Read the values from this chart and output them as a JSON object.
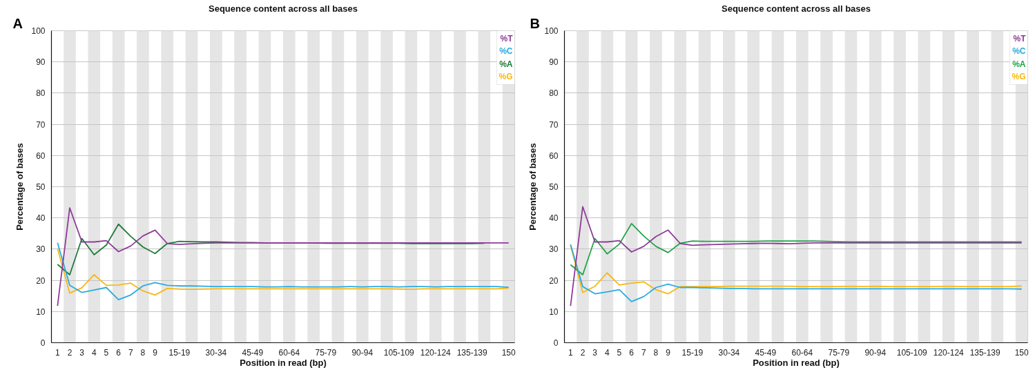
{
  "chart_data": [
    {
      "type": "line",
      "title": "Sequence content across all bases",
      "xlabel": "Position in read (bp)",
      "ylabel": "Percentage of bases",
      "annotations": [
        "A"
      ],
      "categories": [
        "1",
        "2",
        "3",
        "4",
        "5",
        "6",
        "7",
        "8",
        "9",
        null,
        "15-19",
        null,
        null,
        "30-34",
        null,
        null,
        "45-49",
        null,
        null,
        "60-64",
        null,
        null,
        "75-79",
        null,
        null,
        "90-94",
        null,
        null,
        "105-109",
        null,
        null,
        "120-124",
        null,
        null,
        "135-139",
        null,
        null,
        "150"
      ],
      "series": [
        {
          "name": "%T",
          "color": "#8e3a97",
          "values": [
            11.8,
            43.2,
            32.3,
            32.3,
            32.7,
            29.2,
            31.0,
            34.2,
            36.1,
            31.8,
            31.5,
            31.7,
            31.9,
            32.0,
            32.0,
            32.0,
            32.0,
            32.0,
            32.0,
            32.0,
            32.0,
            32.0,
            32.0,
            32.0,
            32.0,
            32.0,
            32.0,
            32.0,
            32.0,
            32.0,
            32.0,
            32.0,
            32.0,
            32.0,
            32.0,
            32.0,
            32.0,
            32.0
          ]
        },
        {
          "name": "%C",
          "color": "#29abe2",
          "values": [
            32.0,
            18.4,
            16.1,
            16.9,
            17.7,
            13.8,
            15.3,
            18.2,
            19.3,
            18.4,
            18.2,
            18.2,
            18.1,
            18.0,
            18.0,
            18.0,
            18.0,
            17.9,
            17.9,
            18.0,
            17.9,
            17.9,
            17.9,
            17.9,
            18.0,
            17.9,
            18.0,
            18.0,
            17.9,
            18.0,
            18.0,
            17.9,
            18.0,
            18.0,
            18.0,
            18.0,
            18.0,
            17.8
          ]
        },
        {
          "name": "%A",
          "color": "#1e7b3a",
          "values": [
            25.1,
            21.8,
            33.4,
            28.2,
            31.3,
            38.0,
            34.1,
            30.7,
            28.6,
            31.8,
            32.5,
            32.4,
            32.3,
            32.3,
            32.2,
            32.1,
            32.1,
            32.0,
            32.0,
            32.0,
            32.0,
            32.0,
            31.9,
            31.9,
            31.9,
            31.9,
            31.9,
            31.9,
            31.9,
            31.8,
            31.8,
            31.8,
            31.8,
            31.8,
            31.8,
            31.9,
            null,
            null
          ]
        },
        {
          "name": "%G",
          "color": "#f7b813",
          "values": [
            30.2,
            15.9,
            17.6,
            21.8,
            18.4,
            18.5,
            19.1,
            16.6,
            15.3,
            17.4,
            17.2,
            17.1,
            17.2,
            17.3,
            17.3,
            17.3,
            17.3,
            17.3,
            17.3,
            17.3,
            17.3,
            17.3,
            17.3,
            17.3,
            17.3,
            17.3,
            17.3,
            17.3,
            17.2,
            17.1,
            17.3,
            17.3,
            17.3,
            17.3,
            17.3,
            17.3,
            17.3,
            17.5
          ]
        }
      ],
      "ylim": [
        0,
        100
      ],
      "yticks": [
        0,
        10,
        20,
        30,
        40,
        50,
        60,
        70,
        80,
        90,
        100
      ],
      "grid": true,
      "legend": "top right"
    },
    {
      "type": "line",
      "title": "Sequence content across all bases",
      "xlabel": "Position in read (bp)",
      "ylabel": "Percentage of bases",
      "annotations": [
        "B"
      ],
      "categories": [
        "1",
        "2",
        "3",
        "4",
        "5",
        "6",
        "7",
        "8",
        "9",
        null,
        "15-19",
        null,
        null,
        "30-34",
        null,
        null,
        "45-49",
        null,
        null,
        "60-64",
        null,
        null,
        "75-79",
        null,
        null,
        "90-94",
        null,
        null,
        "105-109",
        null,
        null,
        "120-124",
        null,
        null,
        "135-139",
        null,
        null,
        "150"
      ],
      "series": [
        {
          "name": "%T",
          "color": "#8e3a97",
          "values": [
            11.8,
            43.6,
            32.3,
            32.3,
            32.7,
            29.1,
            30.9,
            34.0,
            36.1,
            31.8,
            31.2,
            31.4,
            31.5,
            31.6,
            31.7,
            31.8,
            31.9,
            31.8,
            31.7,
            31.9,
            32.0,
            32.0,
            32.0,
            32.0,
            32.0,
            32.0,
            32.0,
            32.0,
            32.0,
            32.0,
            32.0,
            32.0,
            32.0,
            32.0,
            32.0,
            32.0,
            32.0,
            32.0
          ]
        },
        {
          "name": "%C",
          "color": "#29abe2",
          "values": [
            31.5,
            18.0,
            15.7,
            16.3,
            17.0,
            13.2,
            14.8,
            17.7,
            18.8,
            17.7,
            17.7,
            17.6,
            17.5,
            17.4,
            17.4,
            17.3,
            17.3,
            17.3,
            17.3,
            17.3,
            17.3,
            17.3,
            17.3,
            17.3,
            17.3,
            17.3,
            17.3,
            17.3,
            17.3,
            17.3,
            17.3,
            17.3,
            17.3,
            17.3,
            17.3,
            17.3,
            17.3,
            17.2
          ]
        },
        {
          "name": "%A",
          "color": "#22a24a",
          "values": [
            25.0,
            21.8,
            33.4,
            28.5,
            31.6,
            38.2,
            34.2,
            30.9,
            28.9,
            31.9,
            32.6,
            32.5,
            32.5,
            32.5,
            32.5,
            32.5,
            32.6,
            32.6,
            32.6,
            32.6,
            32.6,
            32.5,
            32.4,
            32.3,
            32.3,
            32.3,
            32.3,
            32.3,
            32.3,
            32.3,
            32.3,
            32.3,
            32.3,
            32.3,
            32.3,
            32.3,
            32.3,
            32.3
          ]
        },
        {
          "name": "%G",
          "color": "#f7b813",
          "values": [
            31.2,
            16.1,
            18.1,
            22.4,
            18.5,
            19.1,
            19.5,
            17.0,
            15.7,
            18.0,
            18.0,
            18.0,
            18.0,
            18.1,
            18.1,
            18.1,
            18.1,
            18.1,
            18.1,
            18.0,
            18.0,
            18.0,
            18.0,
            18.1,
            18.0,
            18.1,
            18.0,
            18.0,
            18.0,
            18.0,
            18.0,
            18.1,
            18.0,
            18.0,
            18.0,
            18.0,
            18.0,
            18.2
          ]
        }
      ],
      "ylim": [
        0,
        100
      ],
      "yticks": [
        0,
        10,
        20,
        30,
        40,
        50,
        60,
        70,
        80,
        90,
        100
      ],
      "grid": true,
      "legend": "top right"
    }
  ]
}
